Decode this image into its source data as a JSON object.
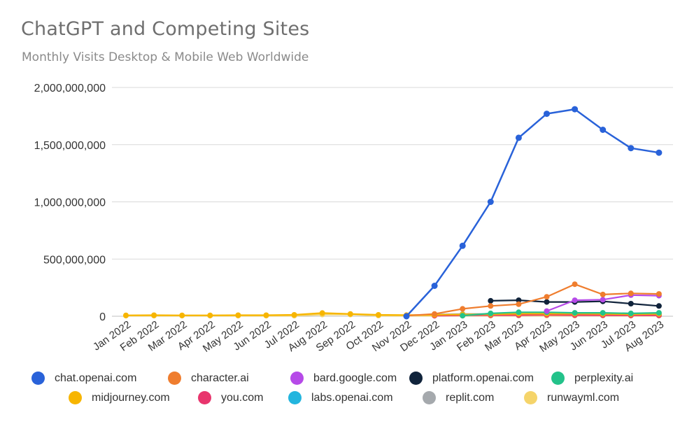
{
  "chart_data": {
    "type": "line",
    "title": "ChatGPT and Competing Sites",
    "subtitle": "Monthly Visits Desktop & Mobile Web Worldwide",
    "categories": [
      "Jan 2022",
      "Feb 2022",
      "Mar 2022",
      "Apr 2022",
      "May 2022",
      "Jun 2022",
      "Jul 2022",
      "Aug 2022",
      "Sep 2022",
      "Oct 2022",
      "Nov 2022",
      "Dec 2022",
      "Jan 2023",
      "Feb 2023",
      "Mar 2023",
      "Apr 2023",
      "May 2023",
      "Jun 2023",
      "Jul 2023",
      "Aug 2023"
    ],
    "ylim": [
      0,
      2000000000
    ],
    "yticks": [
      0,
      500000000,
      1000000000,
      1500000000,
      2000000000
    ],
    "ytick_labels": [
      "0",
      "500,000,000",
      "1,000,000,000",
      "1,500,000,000",
      "2,000,000,000"
    ],
    "grid": true,
    "legend_position": "bottom",
    "series": [
      {
        "name": "chat.openai.com",
        "color": "#2962d9",
        "values": [
          null,
          null,
          null,
          null,
          null,
          null,
          null,
          null,
          null,
          null,
          0,
          266000000,
          616000000,
          1000000000,
          1560000000,
          1770000000,
          1810000000,
          1630000000,
          1470000000,
          1430000000
        ]
      },
      {
        "name": "character.ai",
        "color": "#ef7d2e",
        "values": [
          null,
          null,
          null,
          null,
          null,
          null,
          null,
          null,
          null,
          null,
          5000000,
          20000000,
          65000000,
          90000000,
          105000000,
          170000000,
          280000000,
          190000000,
          200000000,
          195000000
        ]
      },
      {
        "name": "bard.google.com",
        "color": "#b64ae8",
        "values": [
          null,
          null,
          null,
          null,
          null,
          null,
          null,
          null,
          null,
          null,
          null,
          null,
          null,
          null,
          null,
          45000000,
          140000000,
          145000000,
          185000000,
          180000000
        ]
      },
      {
        "name": "platform.openai.com",
        "color": "#10233b",
        "values": [
          null,
          null,
          null,
          null,
          null,
          null,
          null,
          null,
          null,
          null,
          null,
          null,
          null,
          135000000,
          140000000,
          125000000,
          125000000,
          130000000,
          110000000,
          90000000
        ]
      },
      {
        "name": "perplexity.ai",
        "color": "#23c28a",
        "values": [
          null,
          null,
          null,
          null,
          null,
          null,
          null,
          null,
          null,
          null,
          null,
          null,
          5000000,
          25000000,
          35000000,
          35000000,
          30000000,
          30000000,
          25000000,
          30000000
        ]
      },
      {
        "name": "midjourney.com",
        "color": "#f7b500",
        "values": [
          8000000,
          9000000,
          8000000,
          8000000,
          9000000,
          9000000,
          12000000,
          28000000,
          20000000,
          12000000,
          10000000,
          12000000,
          15000000,
          18000000,
          22000000,
          22000000,
          22000000,
          20000000,
          18000000,
          20000000
        ]
      },
      {
        "name": "you.com",
        "color": "#e8356d",
        "values": [
          null,
          null,
          null,
          null,
          null,
          null,
          null,
          null,
          null,
          null,
          null,
          5000000,
          8000000,
          10000000,
          10000000,
          12000000,
          10000000,
          9000000,
          8000000,
          8000000
        ]
      },
      {
        "name": "labs.openai.com",
        "color": "#23b5de",
        "values": [
          null,
          null,
          null,
          null,
          null,
          null,
          null,
          null,
          null,
          null,
          null,
          null,
          15000000,
          15000000,
          15000000,
          15000000,
          15000000,
          12000000,
          10000000,
          10000000
        ]
      },
      {
        "name": "replit.com",
        "color": "#a5a9ad",
        "values": [
          null,
          null,
          null,
          null,
          null,
          null,
          null,
          null,
          null,
          null,
          null,
          15000000,
          20000000,
          20000000,
          20000000,
          25000000,
          20000000,
          20000000,
          15000000,
          15000000
        ]
      },
      {
        "name": "runwayml.com",
        "color": "#f5d46a",
        "values": [
          5000000,
          5000000,
          5000000,
          5000000,
          5000000,
          5000000,
          5000000,
          15000000,
          15000000,
          6000000,
          5000000,
          5000000,
          5000000,
          5000000,
          6000000,
          6000000,
          6000000,
          6000000,
          5000000,
          5000000
        ]
      }
    ]
  }
}
